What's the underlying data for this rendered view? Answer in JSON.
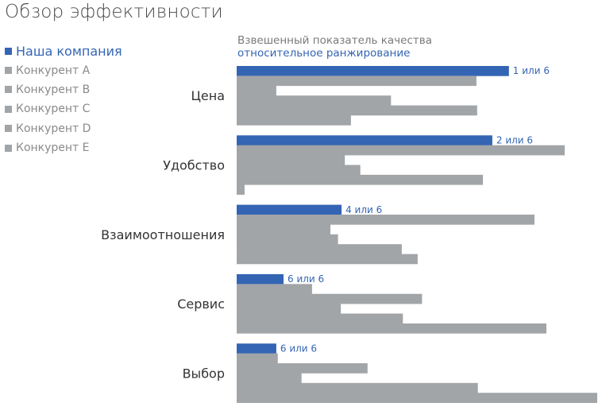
{
  "title": "Обзор эффективности",
  "subtitle": {
    "line1": "Взвешенный показатель качества",
    "line2": "относительное ранжирование"
  },
  "colors": {
    "primary": "#3465b4",
    "competitor": "#a2a5a8"
  },
  "chart_data": {
    "type": "bar",
    "orientation": "horizontal",
    "title": "Обзор эффективности",
    "xlabel": "",
    "ylabel": "",
    "xlim": [
      0,
      100
    ],
    "grid": false,
    "legend_position": "top-left",
    "categories": [
      "Цена",
      "Удобство",
      "Взаимоотношения",
      "Сервис",
      "Выбор"
    ],
    "series": [
      {
        "name": "Наша компания",
        "color": "#3465b4",
        "values": [
          75.5,
          70.9,
          29.1,
          13.0,
          11.0
        ],
        "labels": [
          "1 или 6",
          "2 или 6",
          "4 или 6",
          "6 или 6",
          "6 или 6"
        ]
      },
      {
        "name": "Конкурент A",
        "color": "#a2a5a8",
        "values": [
          66.5,
          91.0,
          82.6,
          20.9,
          11.4
        ]
      },
      {
        "name": "Конкурент B",
        "color": "#a2a5a8",
        "values": [
          11.0,
          30.0,
          26.0,
          51.4,
          36.3
        ]
      },
      {
        "name": "Конкурент C",
        "color": "#a2a5a8",
        "values": [
          42.8,
          34.3,
          28.1,
          28.9,
          18.0
        ]
      },
      {
        "name": "Конкурент D",
        "color": "#a2a5a8",
        "values": [
          66.7,
          68.3,
          45.8,
          46.1,
          66.9
        ]
      },
      {
        "name": "Конкурент E",
        "color": "#a2a5a8",
        "values": [
          31.7,
          2.2,
          50.2,
          85.9,
          100.0
        ]
      }
    ]
  }
}
